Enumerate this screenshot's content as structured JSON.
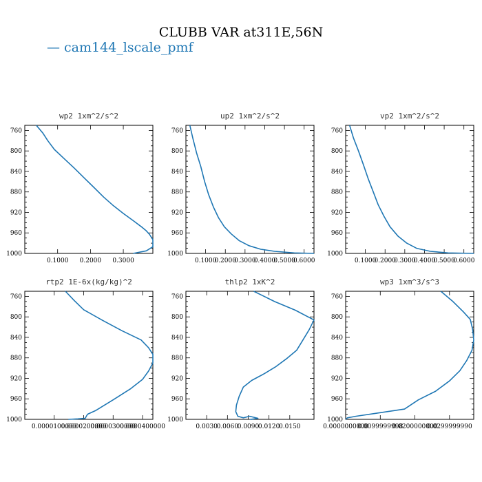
{
  "header": {
    "title": "CLUBB VAR at311E,56N",
    "legend_label": "cam144_lscale_pmf",
    "legend_color": "#1f77b4"
  },
  "chart_data": [
    {
      "type": "line",
      "title": "wp2   1xm^2/s^2",
      "xlim": [
        0.0,
        0.39
      ],
      "ylim": [
        1000,
        750
      ],
      "x_ticks": [
        0.1,
        0.2,
        0.3
      ],
      "x_tick_labels": [
        "0.1000",
        "0.2000",
        "0.3000"
      ],
      "y_ticks": [
        760,
        800,
        840,
        880,
        920,
        960,
        1000
      ],
      "series": [
        {
          "x": [
            0.035,
            0.055,
            0.07,
            0.09,
            0.12,
            0.15,
            0.18,
            0.21,
            0.24,
            0.27,
            0.3,
            0.33,
            0.355,
            0.37,
            0.38,
            0.39,
            0.39,
            0.37,
            0.33
          ],
          "y": [
            750,
            765,
            780,
            797,
            815,
            833,
            852,
            871,
            890,
            907,
            922,
            936,
            948,
            956,
            963,
            973,
            987,
            995,
            1000
          ]
        }
      ]
    },
    {
      "type": "line",
      "title": "up2   1xm^2/s^2",
      "xlim": [
        0.0,
        0.65
      ],
      "ylim": [
        1000,
        750
      ],
      "x_ticks": [
        0.1,
        0.2,
        0.3,
        0.4,
        0.5,
        0.6
      ],
      "x_tick_labels": [
        "0.1000",
        "0.2000",
        "0.3000",
        "0.4000",
        "0.5000",
        "0.6000"
      ],
      "y_ticks": [
        760,
        800,
        840,
        880,
        920,
        960,
        1000
      ],
      "series": [
        {
          "x": [
            0.02,
            0.035,
            0.055,
            0.075,
            0.095,
            0.115,
            0.14,
            0.165,
            0.195,
            0.23,
            0.27,
            0.32,
            0.38,
            0.45,
            0.55,
            0.65
          ],
          "y": [
            750,
            775,
            805,
            830,
            860,
            885,
            910,
            930,
            948,
            962,
            975,
            985,
            992,
            996,
            999,
            1000
          ]
        }
      ]
    },
    {
      "type": "line",
      "title": "vp2   1xm^2/s^2",
      "xlim": [
        0.0,
        0.65
      ],
      "ylim": [
        1000,
        750
      ],
      "x_ticks": [
        0.1,
        0.2,
        0.3,
        0.4,
        0.5,
        0.6
      ],
      "x_tick_labels": [
        "0.1000",
        "0.2000",
        "0.3000",
        "0.4000",
        "0.5000",
        "0.6000"
      ],
      "y_ticks": [
        760,
        800,
        840,
        880,
        920,
        960,
        1000
      ],
      "series": [
        {
          "x": [
            0.02,
            0.04,
            0.065,
            0.09,
            0.115,
            0.14,
            0.165,
            0.195,
            0.225,
            0.265,
            0.31,
            0.36,
            0.43,
            0.52,
            0.65
          ],
          "y": [
            750,
            775,
            800,
            827,
            855,
            880,
            905,
            928,
            948,
            966,
            980,
            990,
            996,
            999,
            1000
          ]
        }
      ]
    },
    {
      "type": "line",
      "title": "rtp2   1E-6x(kg/kg)^2",
      "xlim": [
        0.0,
        4.35e-05
      ],
      "ylim": [
        1000,
        750
      ],
      "x_ticks": [
        1e-05,
        2e-05,
        3e-05,
        4e-05
      ],
      "x_tick_labels": [
        "0.0000100000",
        "0.0000200000",
        "0.0000300000",
        "0.0000400000"
      ],
      "y_ticks": [
        760,
        800,
        840,
        880,
        920,
        960,
        1000
      ],
      "series": [
        {
          "x": [
            1.38e-05,
            1.68e-05,
            2e-05,
            2.65e-05,
            3.3e-05,
            3.95e-05,
            4.2e-05,
            4.35e-05,
            4.35e-05,
            4.2e-05,
            4e-05,
            3.6e-05,
            3e-05,
            2.4e-05,
            2.13e-05,
            2.05e-05,
            1.8e-05,
            1.48e-05
          ],
          "y": [
            750,
            768,
            786,
            807,
            827,
            845,
            860,
            873,
            890,
            906,
            922,
            940,
            962,
            983,
            990,
            998,
            999,
            1000
          ]
        }
      ]
    },
    {
      "type": "line",
      "title": "thlp2   1xK^2",
      "xlim": [
        0.0,
        0.0185
      ],
      "ylim": [
        1000,
        750
      ],
      "x_ticks": [
        0.003,
        0.006,
        0.009,
        0.012,
        0.015
      ],
      "x_tick_labels": [
        "0.0030",
        "0.0060",
        "0.0090",
        "0.0120",
        "0.0150"
      ],
      "y_ticks": [
        760,
        800,
        840,
        880,
        920,
        960,
        1000
      ],
      "series": [
        {
          "x": [
            0.0098,
            0.0128,
            0.0158,
            0.0185,
            0.0178,
            0.017,
            0.016,
            0.0145,
            0.013,
            0.0113,
            0.0095,
            0.0083,
            0.0077,
            0.0073,
            0.0072,
            0.0075,
            0.0083,
            0.0092,
            0.0104,
            0.0093,
            0.0096
          ],
          "y": [
            750,
            770,
            787,
            806,
            825,
            843,
            865,
            882,
            897,
            911,
            924,
            937,
            955,
            972,
            985,
            994,
            997,
            994,
            998,
            1000,
            1000
          ]
        }
      ]
    },
    {
      "type": "line",
      "title": "wp3   1xm^3/s^3",
      "xlim": [
        0.0,
        0.037
      ],
      "ylim": [
        1000,
        750
      ],
      "x_ticks": [
        0.0,
        0.01,
        0.02,
        0.03
      ],
      "x_tick_labels": [
        "0.0000000000",
        "0.0099999998",
        "0.0200000000",
        "0.0299999990"
      ],
      "y_ticks": [
        760,
        800,
        840,
        880,
        920,
        960,
        1000
      ],
      "series": [
        {
          "x": [
            0.0275,
            0.031,
            0.034,
            0.036,
            0.0367,
            0.037,
            0.0365,
            0.035,
            0.033,
            0.03,
            0.026,
            0.021,
            0.017,
            0.009,
            0.003,
            0.0005,
            0.0
          ],
          "y": [
            750,
            770,
            790,
            805,
            825,
            845,
            865,
            885,
            905,
            925,
            945,
            962,
            980,
            988,
            994,
            997,
            1000
          ]
        }
      ]
    }
  ]
}
